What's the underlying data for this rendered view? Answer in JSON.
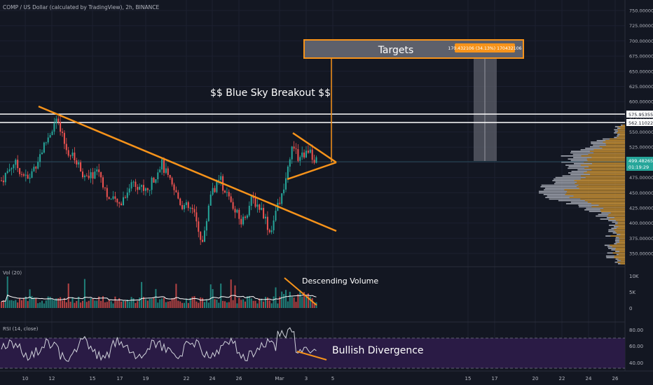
{
  "header": {
    "symbol_line": "COMP / US Dollar (calculated by TradingView), 2h, BINANCE"
  },
  "colors": {
    "background": "#131722",
    "up": "#26a69a",
    "down": "#ef5350",
    "annotation": "#f7931a",
    "text": "#b2b5be",
    "rsi_band": "#2a1b45",
    "rsi_line": "#d1d4dc"
  },
  "annotations": {
    "breakout_text": "$$ Blue Sky Breakout $$",
    "targets_label": "Targets",
    "targets_badge": "170.432106 (34.13%) 170432106",
    "volume_text": "Descending Volume",
    "divergence_text": "Bullish Divergence"
  },
  "price_axis": {
    "ticks": [
      "750.000000",
      "725.000000",
      "700.000000",
      "675.000000",
      "650.000000",
      "625.000000",
      "600.000000",
      "575.000000",
      "550.000000",
      "525.000000",
      "500.000000",
      "475.000000",
      "450.000000",
      "425.000000",
      "400.000000",
      "375.000000",
      "350.000000"
    ],
    "level_1": "575.953556",
    "level_2": "562.110224",
    "current_price": "499.482654",
    "countdown": "01:19:29"
  },
  "volume_panel": {
    "label": "Vol (20)",
    "ticks": [
      "10K",
      "5K",
      "0"
    ]
  },
  "rsi_panel": {
    "label": "RSI (14, close)",
    "ticks": [
      "80.00",
      "60.00",
      "40.00"
    ]
  },
  "time_axis": {
    "ticks": [
      "10",
      "12",
      "15",
      "17",
      "19",
      "22",
      "24",
      "26",
      "Mar",
      "3",
      "5",
      "15",
      "17",
      "20",
      "22",
      "24",
      "26"
    ]
  },
  "chart_data": {
    "type": "candlestick",
    "symbol": "COMP/USD",
    "interval": "2h",
    "exchange": "BINANCE",
    "price_range": [
      330,
      760
    ],
    "horizontal_levels": [
      575.953556,
      562.110224
    ],
    "last_price": 499.482654,
    "target_move": 170.432106,
    "target_move_pct": 34.13,
    "price_path_keypoints": [
      {
        "x": "10",
        "y": 470
      },
      {
        "x": "12",
        "y": 565
      },
      {
        "x": "15",
        "y": 480
      },
      {
        "x": "17",
        "y": 430
      },
      {
        "x": "19",
        "y": 485
      },
      {
        "x": "22",
        "y": 370
      },
      {
        "x": "24",
        "y": 450
      },
      {
        "x": "26",
        "y": 400
      },
      {
        "x": "Mar",
        "y": 390
      },
      {
        "x": "3",
        "y": 510
      }
    ],
    "volume_ticks": [
      "0",
      "5K",
      "10K"
    ],
    "rsi_band": [
      30,
      70
    ],
    "rsi_keypoints": [
      60,
      65,
      50,
      55,
      45,
      60,
      48,
      55,
      42,
      50,
      38,
      80,
      55,
      58
    ]
  }
}
